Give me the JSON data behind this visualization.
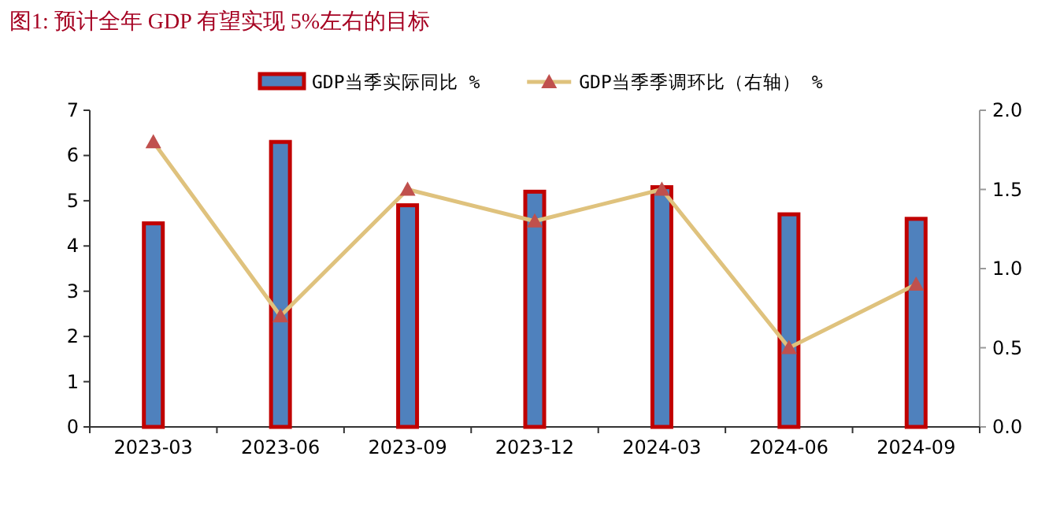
{
  "chart_data": {
    "type": "bar",
    "title": "图1:  预计全年 GDP 有望实现 5%左右的目标",
    "categories": [
      "2023-03",
      "2023-06",
      "2023-09",
      "2023-12",
      "2024-03",
      "2024-06",
      "2024-09"
    ],
    "series": [
      {
        "name": "GDP当季实际同比 %",
        "color": "#4f81bd",
        "values": [
          4.5,
          6.3,
          4.9,
          5.2,
          5.3,
          4.7,
          4.6
        ]
      },
      {
        "name": "GDP当季季调环比（右轴） %",
        "type": "line",
        "axis": "y2",
        "color": "#dfc27d",
        "values": [
          1.8,
          0.7,
          1.5,
          1.3,
          1.5,
          0.5,
          0.9
        ]
      }
    ],
    "ylim": [
      0,
      7
    ],
    "yticks": [
      0,
      1,
      2,
      3,
      4,
      5,
      6,
      7
    ],
    "y2lim": [
      0,
      2
    ],
    "y2ticks": [
      {
        "value": 0,
        "label": "0.0"
      },
      {
        "value": 0.5,
        "label": "0.5"
      },
      {
        "value": 1,
        "label": "1.0"
      },
      {
        "value": 1.5,
        "label": "1.5"
      },
      {
        "value": 2,
        "label": "2.0"
      }
    ],
    "marker": "triangle",
    "legend": "top"
  }
}
